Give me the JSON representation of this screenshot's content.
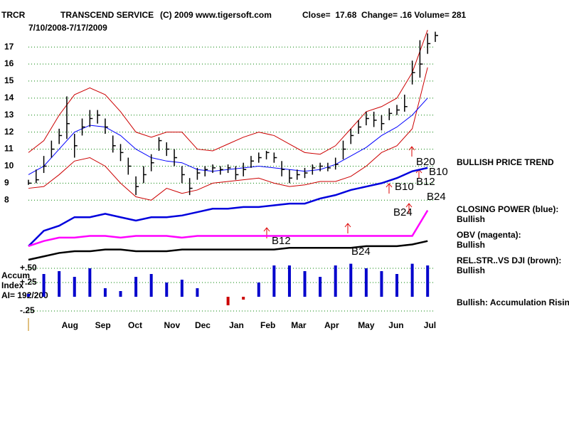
{
  "chart_data": {
    "type": "stock",
    "symbol": "TRCR",
    "name": "TRANSCEND SERVICE",
    "copyright": "(C) 2009 www.tigersoft.com",
    "quote": "Close=  17.68  Change= .16 Volume= 281",
    "date_range": "7/10/2008-7/17/2009",
    "xlim": [
      0,
      53
    ],
    "xticks": [
      {
        "value": 5.4,
        "label": "Aug"
      },
      {
        "value": 9.7,
        "label": "Sep"
      },
      {
        "value": 13.9,
        "label": "Oct"
      },
      {
        "value": 18.7,
        "label": "Nov"
      },
      {
        "value": 22.7,
        "label": "Dec"
      },
      {
        "value": 27.1,
        "label": "Jan"
      },
      {
        "value": 31.2,
        "label": "Feb"
      },
      {
        "value": 35.2,
        "label": "Mar"
      },
      {
        "value": 39.5,
        "label": "Apr"
      },
      {
        "value": 44.0,
        "label": "May"
      },
      {
        "value": 47.9,
        "label": "Jun"
      },
      {
        "value": 52.3,
        "label": "Jul"
      }
    ],
    "ylim": [
      4.5,
      18.3
    ],
    "yticks": [
      8,
      9,
      10,
      11,
      12,
      13,
      14,
      15,
      16,
      17
    ],
    "grid": true,
    "grid_color": "#008000",
    "price": {
      "color": "#000000",
      "x": [
        0,
        1,
        2,
        3,
        4,
        5,
        6,
        7,
        8,
        9,
        10,
        11,
        12,
        13,
        14,
        15,
        16,
        17,
        18,
        19,
        20,
        21,
        22,
        23,
        24,
        25,
        26,
        27,
        28,
        29,
        30,
        31,
        32,
        33,
        34,
        35,
        36,
        37,
        38,
        39,
        40,
        41,
        42,
        43,
        44,
        45,
        46,
        47,
        48,
        49,
        50,
        51,
        52,
        53
      ],
      "high": [
        9.2,
        9.8,
        10.6,
        11.5,
        12.2,
        14.1,
        11.9,
        12.8,
        13.3,
        13.3,
        12.8,
        11.8,
        11.3,
        10.5,
        9.4,
        10.0,
        10.7,
        11.7,
        11.4,
        11.0,
        10.0,
        9.3,
        9.9,
        10.0,
        10.1,
        10.0,
        10.1,
        10.0,
        10.2,
        10.6,
        10.8,
        10.9,
        10.8,
        10.3,
        9.8,
        9.8,
        9.9,
        10.1,
        10.2,
        10.2,
        10.5,
        11.5,
        12.2,
        12.7,
        13.2,
        13.2,
        13.0,
        13.4,
        13.6,
        14.2,
        16.2,
        17.4,
        17.8,
        17.9
      ],
      "low": [
        8.9,
        9.0,
        9.6,
        10.5,
        11.3,
        11.6,
        10.5,
        11.8,
        12.3,
        12.5,
        11.9,
        10.8,
        10.3,
        9.5,
        8.3,
        9.0,
        9.7,
        10.9,
        10.6,
        10.0,
        9.0,
        8.3,
        9.2,
        9.4,
        9.6,
        9.5,
        9.6,
        9.2,
        9.4,
        9.9,
        10.2,
        10.4,
        10.2,
        9.4,
        9.0,
        9.2,
        9.3,
        9.5,
        9.7,
        9.7,
        9.8,
        10.4,
        11.3,
        11.9,
        12.4,
        12.3,
        12.1,
        12.7,
        13.0,
        13.2,
        14.8,
        15.2,
        16.6,
        17.3
      ],
      "close": [
        9.0,
        9.2,
        10.0,
        11.0,
        11.8,
        12.5,
        11.2,
        12.3,
        12.8,
        13.0,
        12.3,
        11.2,
        10.8,
        10.0,
        8.8,
        9.5,
        10.2,
        11.5,
        11.0,
        10.5,
        9.5,
        8.7,
        9.6,
        9.8,
        9.9,
        9.8,
        9.9,
        9.5,
        9.8,
        10.3,
        10.5,
        10.8,
        10.5,
        9.8,
        9.3,
        9.5,
        9.6,
        9.9,
        10.0,
        9.9,
        10.1,
        11.0,
        11.8,
        12.3,
        12.8,
        12.7,
        12.5,
        13.1,
        13.3,
        13.5,
        15.5,
        16.0,
        17.2,
        17.68
      ]
    },
    "series": [
      {
        "color": "#cc0000",
        "width": 1,
        "x": [
          0,
          2,
          4,
          6,
          8,
          10,
          12,
          14,
          16,
          18,
          20,
          22,
          24,
          26,
          28,
          30,
          32,
          34,
          36,
          38,
          40,
          42,
          44,
          46,
          48,
          50,
          52
        ],
        "values": [
          10.8,
          11.5,
          13.0,
          14.2,
          14.6,
          14.2,
          13.2,
          12.0,
          11.7,
          12.0,
          12.0,
          11.0,
          10.9,
          11.3,
          11.7,
          12.0,
          11.8,
          11.3,
          10.8,
          10.7,
          11.2,
          12.2,
          13.2,
          13.5,
          14.0,
          15.5,
          18.0
        ]
      },
      {
        "color": "#cc0000",
        "width": 1,
        "x": [
          0,
          2,
          4,
          6,
          8,
          10,
          12,
          14,
          16,
          18,
          20,
          22,
          24,
          26,
          28,
          30,
          32,
          34,
          36,
          38,
          40,
          42,
          44,
          46,
          48,
          50,
          52
        ],
        "values": [
          8.7,
          8.8,
          9.5,
          10.3,
          10.5,
          10.0,
          9.0,
          8.2,
          8.0,
          8.7,
          8.4,
          8.6,
          9.0,
          9.1,
          9.2,
          9.3,
          9.0,
          8.8,
          8.9,
          9.1,
          9.1,
          9.4,
          10.0,
          10.8,
          11.2,
          12.2,
          15.8
        ]
      },
      {
        "color": "#0000ff",
        "width": 1,
        "x": [
          0,
          2,
          4,
          6,
          8,
          10,
          12,
          14,
          16,
          18,
          20,
          22,
          24,
          26,
          28,
          30,
          32,
          34,
          36,
          38,
          40,
          42,
          44,
          46,
          48,
          50,
          52
        ],
        "values": [
          9.5,
          10.0,
          11.0,
          12.0,
          12.4,
          12.3,
          11.8,
          11.0,
          10.5,
          10.3,
          10.2,
          9.8,
          9.7,
          9.8,
          9.9,
          10.0,
          9.9,
          9.8,
          9.7,
          9.8,
          10.1,
          10.6,
          11.1,
          11.8,
          12.3,
          13.0,
          14.0
        ]
      },
      {
        "name": "CLOSING POWER (blue):",
        "status": "Bullish",
        "color": "#0000dd",
        "width": 2.5,
        "x": [
          0,
          2,
          4,
          6,
          8,
          10,
          12,
          14,
          16,
          18,
          20,
          22,
          24,
          26,
          28,
          30,
          32,
          34,
          36,
          38,
          40,
          42,
          44,
          46,
          48,
          50,
          52
        ],
        "values": [
          5.3,
          6.2,
          6.5,
          7.0,
          7.0,
          7.2,
          7.0,
          6.8,
          7.0,
          7.0,
          7.1,
          7.3,
          7.5,
          7.5,
          7.6,
          7.6,
          7.7,
          7.8,
          7.8,
          8.1,
          8.3,
          8.6,
          8.8,
          9.0,
          9.3,
          9.7,
          9.9
        ]
      },
      {
        "name": "OBV (magenta):",
        "status": "Bullish",
        "color": "#ff00ff",
        "width": 2.5,
        "x": [
          0,
          2,
          4,
          6,
          8,
          10,
          12,
          14,
          16,
          18,
          20,
          22,
          24,
          26,
          28,
          30,
          32,
          34,
          36,
          38,
          40,
          42,
          44,
          46,
          48,
          50,
          52
        ],
        "values": [
          5.3,
          5.6,
          5.8,
          5.8,
          5.9,
          5.9,
          5.8,
          5.9,
          5.9,
          5.9,
          5.8,
          5.9,
          5.9,
          5.9,
          5.9,
          5.9,
          5.9,
          5.9,
          5.9,
          5.9,
          5.9,
          5.9,
          5.9,
          5.9,
          5.9,
          5.9,
          7.4
        ]
      },
      {
        "name": "REL.STR..VS DJI (brown):",
        "status": "Bullish",
        "color": "#000000",
        "width": 2.5,
        "x": [
          0,
          2,
          4,
          6,
          8,
          10,
          12,
          14,
          16,
          18,
          20,
          22,
          24,
          26,
          28,
          30,
          32,
          34,
          36,
          38,
          40,
          42,
          44,
          46,
          48,
          50,
          52
        ],
        "values": [
          4.5,
          4.7,
          4.9,
          5.0,
          5.0,
          5.1,
          5.1,
          5.0,
          5.0,
          5.0,
          5.1,
          5.1,
          5.1,
          5.1,
          5.1,
          5.1,
          5.1,
          5.2,
          5.2,
          5.2,
          5.2,
          5.2,
          5.3,
          5.3,
          5.3,
          5.4,
          5.6
        ]
      }
    ],
    "price_trend": "BULLISH PRICE TREND",
    "annotations": [
      "B20",
      "B10",
      "B12",
      "B10",
      "B24",
      "B24",
      "B12",
      "B24"
    ],
    "accum": {
      "labels": [
        "Accum",
        "Index",
        "AI= 192/200"
      ],
      "status": "Bullish: Accumulation Rising",
      "color": "#0000cc",
      "ylim": [
        -0.3,
        0.6
      ],
      "yticks": [
        {
          "value": 0.5,
          "label": "+.50"
        },
        {
          "value": 0.25,
          "label": "+.25"
        },
        {
          "value": -0.25,
          "label": "-.25"
        }
      ],
      "x": [
        0,
        2,
        4,
        6,
        8,
        10,
        12,
        14,
        16,
        18,
        20,
        22,
        24,
        26,
        28,
        30,
        32,
        34,
        36,
        38,
        40,
        42,
        44,
        46,
        48,
        50,
        52
      ],
      "values": [
        0.05,
        0.4,
        0.45,
        0.35,
        0.5,
        0.15,
        0.1,
        0.35,
        0.4,
        0.25,
        0.3,
        0.15,
        0.0,
        -0.15,
        -0.05,
        0.25,
        0.55,
        0.55,
        0.45,
        0.35,
        0.55,
        0.58,
        0.5,
        0.45,
        0.4,
        0.58,
        0.55
      ]
    }
  }
}
